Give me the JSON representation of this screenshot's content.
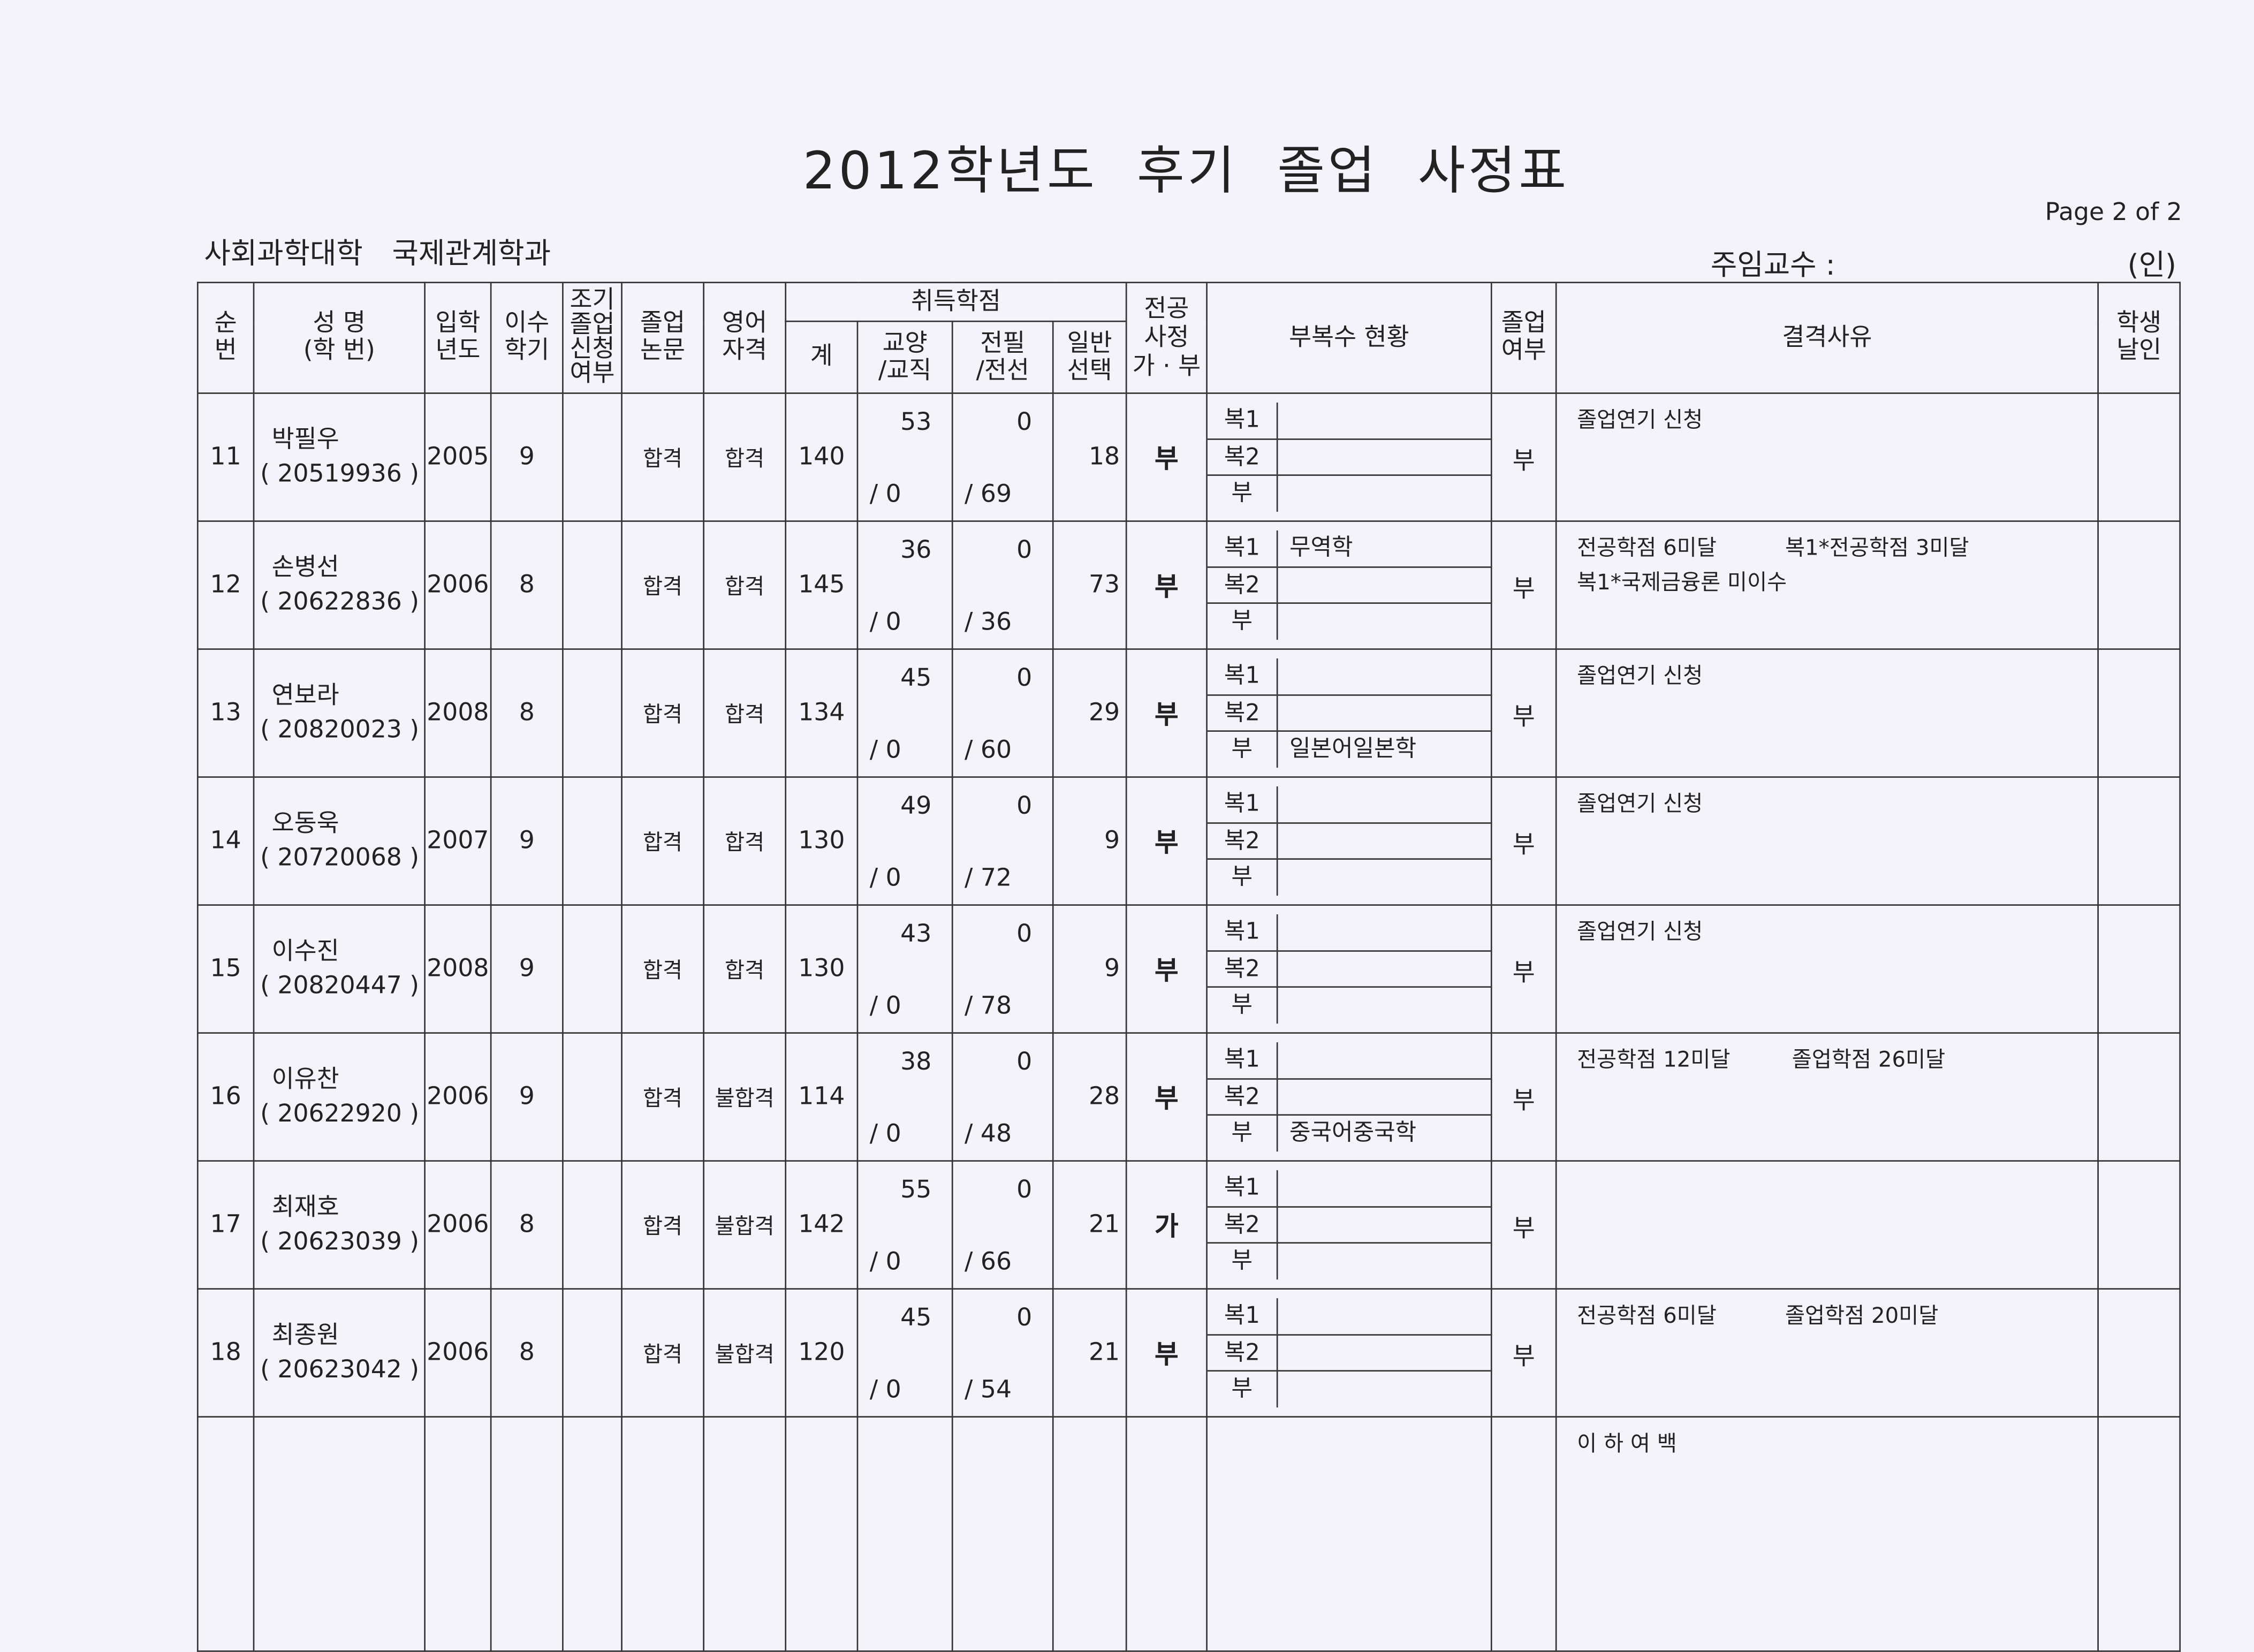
{
  "title": "2012학년도 후기  졸업 사정표",
  "page": "Page 2 of 2",
  "department": "사회과학대학  국제관계학과",
  "professor_label": "주임교수 :",
  "seal_label": "(인)",
  "headers": {
    "no": "순\n번",
    "name": "성 명\n(학 번)",
    "entry": "입학\n년도",
    "semesters": "이수\n학기",
    "early": "조기\n졸업\n신청\n여부",
    "thesis": "졸업\n논문",
    "english": "영어\n자격",
    "credits": "취득학점",
    "total": "계",
    "liberal": "교양\n/교직",
    "major_req": "전필\n/전선",
    "general": "일반\n선택",
    "major_review": "전공\n사정\n가 · 부",
    "minor": "부복수 현황",
    "graduate": "졸업\n여부",
    "reason": "결격사유",
    "seal": "학생\n날인"
  },
  "minor_labels": [
    "복1",
    "복2",
    "부"
  ],
  "rows": [
    {
      "no": "11",
      "name": "박필우",
      "id": "( 20519936  )",
      "entry": "2005",
      "sem": "9",
      "early": "",
      "thesis": "합격",
      "english": "합격",
      "total": "140",
      "lib": "53",
      "tc": "/   0",
      "mreq": "0",
      "msel": "/  69",
      "gen": "18",
      "review": "부",
      "minor": [
        "",
        "",
        ""
      ],
      "grad": "부",
      "reason": "졸업연기 신청"
    },
    {
      "no": "12",
      "name": "손병선",
      "id": "( 20622836  )",
      "entry": "2006",
      "sem": "8",
      "early": "",
      "thesis": "합격",
      "english": "합격",
      "total": "145",
      "lib": "36",
      "tc": "/   0",
      "mreq": "0",
      "msel": "/  36",
      "gen": "73",
      "review": "부",
      "minor": [
        "무역학",
        "",
        ""
      ],
      "grad": "부",
      "reason": "전공학점 6미달          복1*전공학점 3미달\n복1*국제금융론 미이수"
    },
    {
      "no": "13",
      "name": "연보라",
      "id": "( 20820023  )",
      "entry": "2008",
      "sem": "8",
      "early": "",
      "thesis": "합격",
      "english": "합격",
      "total": "134",
      "lib": "45",
      "tc": "/   0",
      "mreq": "0",
      "msel": "/  60",
      "gen": "29",
      "review": "부",
      "minor": [
        "",
        "",
        "일본어일본학"
      ],
      "grad": "부",
      "reason": "졸업연기 신청"
    },
    {
      "no": "14",
      "name": "오동욱",
      "id": "( 20720068  )",
      "entry": "2007",
      "sem": "9",
      "early": "",
      "thesis": "합격",
      "english": "합격",
      "total": "130",
      "lib": "49",
      "tc": "/   0",
      "mreq": "0",
      "msel": "/  72",
      "gen": "9",
      "review": "부",
      "minor": [
        "",
        "",
        ""
      ],
      "grad": "부",
      "reason": "졸업연기 신청"
    },
    {
      "no": "15",
      "name": "이수진",
      "id": "( 20820447  )",
      "entry": "2008",
      "sem": "9",
      "early": "",
      "thesis": "합격",
      "english": "합격",
      "total": "130",
      "lib": "43",
      "tc": "/   0",
      "mreq": "0",
      "msel": "/  78",
      "gen": "9",
      "review": "부",
      "minor": [
        "",
        "",
        ""
      ],
      "grad": "부",
      "reason": "졸업연기 신청"
    },
    {
      "no": "16",
      "name": "이유찬",
      "id": "( 20622920  )",
      "entry": "2006",
      "sem": "9",
      "early": "",
      "thesis": "합격",
      "english": "불합격",
      "total": "114",
      "lib": "38",
      "tc": "/   0",
      "mreq": "0",
      "msel": "/  48",
      "gen": "28",
      "review": "부",
      "minor": [
        "",
        "",
        "중국어중국학"
      ],
      "grad": "부",
      "reason": "전공학점 12미달         졸업학점 26미달"
    },
    {
      "no": "17",
      "name": "최재호",
      "id": "( 20623039  )",
      "entry": "2006",
      "sem": "8",
      "early": "",
      "thesis": "합격",
      "english": "불합격",
      "total": "142",
      "lib": "55",
      "tc": "/   0",
      "mreq": "0",
      "msel": "/  66",
      "gen": "21",
      "review": "가",
      "minor": [
        "",
        "",
        ""
      ],
      "grad": "부",
      "reason": ""
    },
    {
      "no": "18",
      "name": "최종원",
      "id": "( 20623042  )",
      "entry": "2006",
      "sem": "8",
      "early": "",
      "thesis": "합격",
      "english": "불합격",
      "total": "120",
      "lib": "45",
      "tc": "/   0",
      "mreq": "0",
      "msel": "/  54",
      "gen": "21",
      "review": "부",
      "minor": [
        "",
        "",
        ""
      ],
      "grad": "부",
      "reason": "전공학점 6미달          졸업학점 20미달"
    }
  ],
  "blank_note": "이 하 여 백"
}
